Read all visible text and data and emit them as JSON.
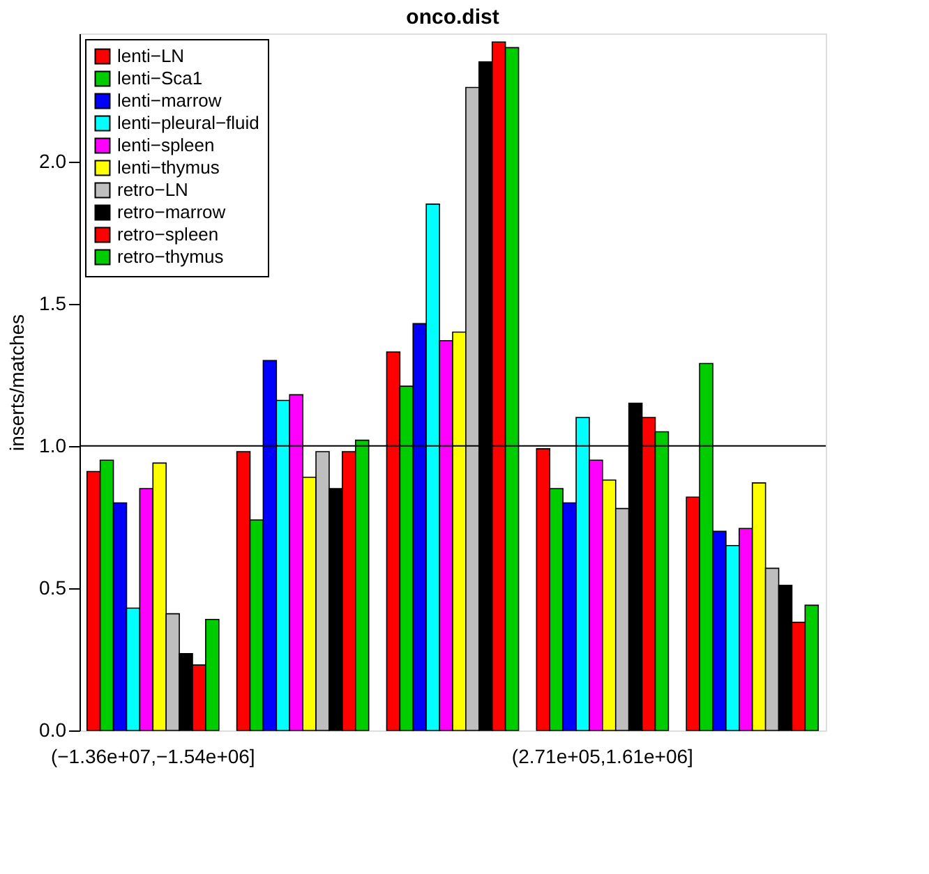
{
  "chart_data": {
    "type": "bar",
    "title": "onco.dist",
    "ylabel": "inserts/matches",
    "categories": [
      "(−1.36e+07,−1.54e+06]",
      null,
      null,
      "(2.71e+05,1.61e+06]",
      null
    ],
    "series": [
      {
        "name": "lenti−LN",
        "color": "#ff0000",
        "values": [
          0.91,
          0.98,
          1.33,
          0.99,
          0.82
        ]
      },
      {
        "name": "lenti−Sca1",
        "color": "#00cd00",
        "values": [
          0.95,
          0.74,
          1.21,
          0.85,
          1.29
        ]
      },
      {
        "name": "lenti−marrow",
        "color": "#0000ff",
        "values": [
          0.8,
          1.3,
          1.43,
          0.8,
          0.7
        ]
      },
      {
        "name": "lenti−pleural−fluid",
        "color": "#00ffff",
        "values": [
          0.43,
          1.16,
          1.85,
          1.1,
          0.65
        ]
      },
      {
        "name": "lenti−spleen",
        "color": "#ff00ff",
        "values": [
          0.85,
          1.18,
          1.37,
          0.95,
          0.71
        ]
      },
      {
        "name": "lenti−thymus",
        "color": "#ffff00",
        "values": [
          0.94,
          0.89,
          1.4,
          0.88,
          0.87
        ]
      },
      {
        "name": "retro−LN",
        "color": "#bebebe",
        "values": [
          0.41,
          0.98,
          2.26,
          0.78,
          0.57
        ]
      },
      {
        "name": "retro−marrow",
        "color": "#000000",
        "values": [
          0.27,
          0.85,
          2.35,
          1.15,
          0.51
        ]
      },
      {
        "name": "retro−spleen",
        "color": "#ff0000",
        "values": [
          0.23,
          0.98,
          2.42,
          1.1,
          0.38
        ]
      },
      {
        "name": "retro−thymus",
        "color": "#00cd00",
        "values": [
          0.39,
          1.02,
          2.4,
          1.05,
          0.44
        ]
      }
    ],
    "ylim": [
      0,
      2.45
    ],
    "yticks": [
      {
        "value": 0,
        "label": "0.0"
      },
      0.5,
      {
        "value": 1,
        "label": "1.0"
      },
      1.5,
      {
        "value": 2,
        "label": "2.0"
      }
    ],
    "grid": false,
    "legend": "top left",
    "ref_lines": [
      {
        "axis": "y",
        "value": 1.0
      }
    ]
  }
}
